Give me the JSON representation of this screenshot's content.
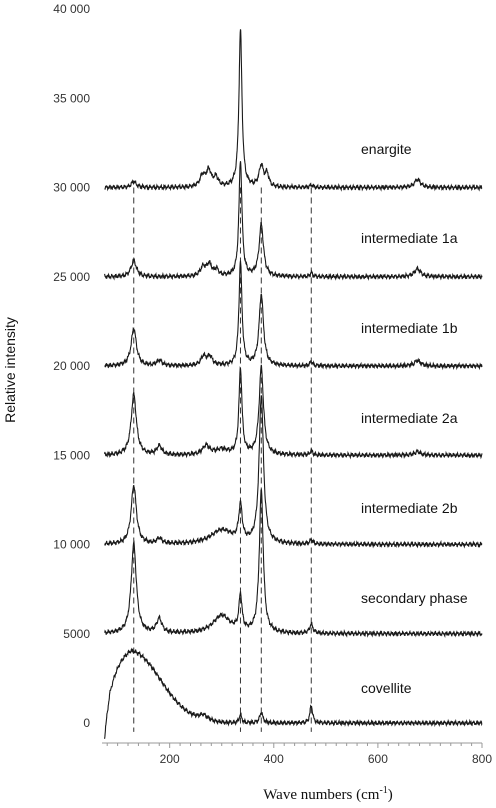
{
  "chart_data": {
    "type": "line",
    "title": "",
    "xlabel_main": "Wave numbers (cm",
    "xlabel_sup": "-1",
    "xlabel_end": ")",
    "ylabel": "Relative intensity",
    "xlim": [
      70,
      800
    ],
    "ylim": [
      -1000,
      40000
    ],
    "x_ticks": [
      200,
      400,
      600,
      800
    ],
    "x_tick_labels": [
      "200",
      "400",
      "600",
      "800"
    ],
    "y_ticks": [
      0,
      5000,
      10000,
      15000,
      20000,
      25000,
      30000,
      35000,
      40000
    ],
    "y_tick_labels": [
      "0",
      "5000",
      "10 000",
      "15 000",
      "20 000",
      "25 000",
      "30 000",
      "35 000",
      "40 000"
    ],
    "reference_lines_x": [
      131,
      336,
      376,
      472
    ],
    "grid": false,
    "legend": "none (series labelled inline)",
    "series": [
      {
        "name": "enargite",
        "baseline": 30000,
        "peaks": [
          [
            131,
            350,
            5
          ],
          [
            263,
            600,
            6
          ],
          [
            275,
            900,
            6
          ],
          [
            289,
            500,
            5
          ],
          [
            336,
            8800,
            3.5
          ],
          [
            376,
            1200,
            5
          ],
          [
            387,
            700,
            4
          ],
          [
            472,
            150,
            3
          ],
          [
            676,
            450,
            7
          ]
        ]
      },
      {
        "name": "intermediate 1a",
        "baseline": 25000,
        "peaks": [
          [
            131,
            900,
            6
          ],
          [
            264,
            500,
            6
          ],
          [
            276,
            650,
            6
          ],
          [
            290,
            350,
            5
          ],
          [
            336,
            6500,
            3.5
          ],
          [
            376,
            2900,
            5
          ],
          [
            472,
            200,
            3
          ],
          [
            676,
            450,
            7
          ]
        ]
      },
      {
        "name": "intermediate 1b",
        "baseline": 20000,
        "peaks": [
          [
            131,
            2100,
            6
          ],
          [
            180,
            300,
            6
          ],
          [
            265,
            500,
            6
          ],
          [
            277,
            500,
            6
          ],
          [
            336,
            5800,
            3.5
          ],
          [
            376,
            4000,
            5
          ],
          [
            472,
            250,
            3
          ],
          [
            676,
            300,
            7
          ]
        ]
      },
      {
        "name": "intermediate 2a",
        "baseline": 15000,
        "peaks": [
          [
            131,
            3400,
            6
          ],
          [
            180,
            500,
            6
          ],
          [
            270,
            500,
            8
          ],
          [
            300,
            300,
            15
          ],
          [
            336,
            4800,
            3.5
          ],
          [
            376,
            4900,
            5
          ],
          [
            472,
            250,
            3
          ],
          [
            676,
            200,
            7
          ]
        ]
      },
      {
        "name": "intermediate 2b",
        "baseline": 10000,
        "peaks": [
          [
            131,
            3300,
            6
          ],
          [
            180,
            300,
            6
          ],
          [
            300,
            800,
            25
          ],
          [
            336,
            2000,
            4
          ],
          [
            376,
            8300,
            5
          ],
          [
            472,
            250,
            3
          ]
        ]
      },
      {
        "name": "secondary phase",
        "baseline": 5000,
        "peaks": [
          [
            131,
            5000,
            6
          ],
          [
            180,
            800,
            6
          ],
          [
            300,
            1000,
            20
          ],
          [
            336,
            2000,
            3.5
          ],
          [
            376,
            8000,
            4.5
          ],
          [
            472,
            500,
            4
          ]
        ]
      },
      {
        "name": "covellite",
        "baseline": 0,
        "broad": {
          "start": 75,
          "center": 125,
          "amp": 4500,
          "rise": 22,
          "decay": 80
        },
        "peaks": [
          [
            265,
            300,
            10
          ],
          [
            336,
            450,
            3
          ],
          [
            376,
            600,
            3.5
          ],
          [
            472,
            1000,
            3
          ]
        ]
      }
    ],
    "colors": {
      "line": "#1a1a1a",
      "axis": "#999999",
      "dashed": "#333333"
    }
  }
}
